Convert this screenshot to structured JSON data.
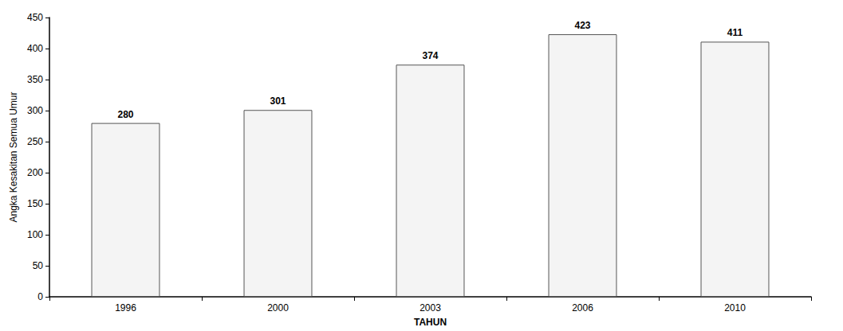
{
  "chart_data": {
    "type": "bar",
    "x_label": "TAHUN",
    "y_label": "Angka Kesakitan Semua Umur",
    "categories": [
      "1996",
      "2000",
      "2003",
      "2006",
      "2010"
    ],
    "values": [
      280,
      301,
      374,
      423,
      411
    ],
    "color": "#f4f4f4",
    "ylim": [
      0,
      450
    ],
    "yticks": [
      0,
      50,
      100,
      150,
      200,
      250,
      300,
      350,
      400,
      450
    ],
    "grid": false,
    "data_labels": true
  }
}
